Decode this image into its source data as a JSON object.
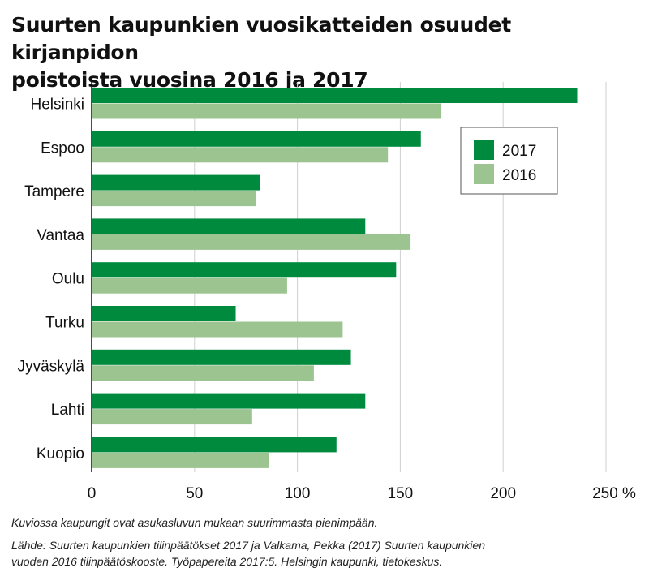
{
  "title_lines": [
    "Suurten kaupunkien vuosikatteiden osuudet kirjanpidon",
    "poistoista vuosina 2016 ja 2017"
  ],
  "chart_data": {
    "type": "bar",
    "orientation": "horizontal",
    "categories": [
      "Helsinki",
      "Espoo",
      "Tampere",
      "Vantaa",
      "Oulu",
      "Turku",
      "Jyväskylä",
      "Lahti",
      "Kuopio"
    ],
    "series": [
      {
        "name": "2017",
        "values": [
          236,
          160,
          82,
          133,
          148,
          70,
          126,
          133,
          119
        ],
        "color": "#008a3e"
      },
      {
        "name": "2016",
        "values": [
          170,
          144,
          80,
          155,
          95,
          122,
          108,
          78,
          86
        ],
        "color": "#9cc491"
      }
    ],
    "xlim": [
      0,
      250
    ],
    "xticks": [
      "0",
      "50",
      "100",
      "150",
      "200",
      "250 %"
    ],
    "grid": "vertical",
    "legend_position": "top-right"
  },
  "notes": {
    "caption": "Kuviossa kaupungit ovat asukasluvun mukaan suurimmasta pienimpään.",
    "source_lines": [
      "Lähde: Suurten kaupunkien tilinpäätökset 2017 ja Valkama, Pekka (2017) Suurten kaupunkien",
      "vuoden 2016 tilinpäätöskooste. Työpapereita 2017:5. Helsingin kaupunki, tietokeskus."
    ]
  }
}
